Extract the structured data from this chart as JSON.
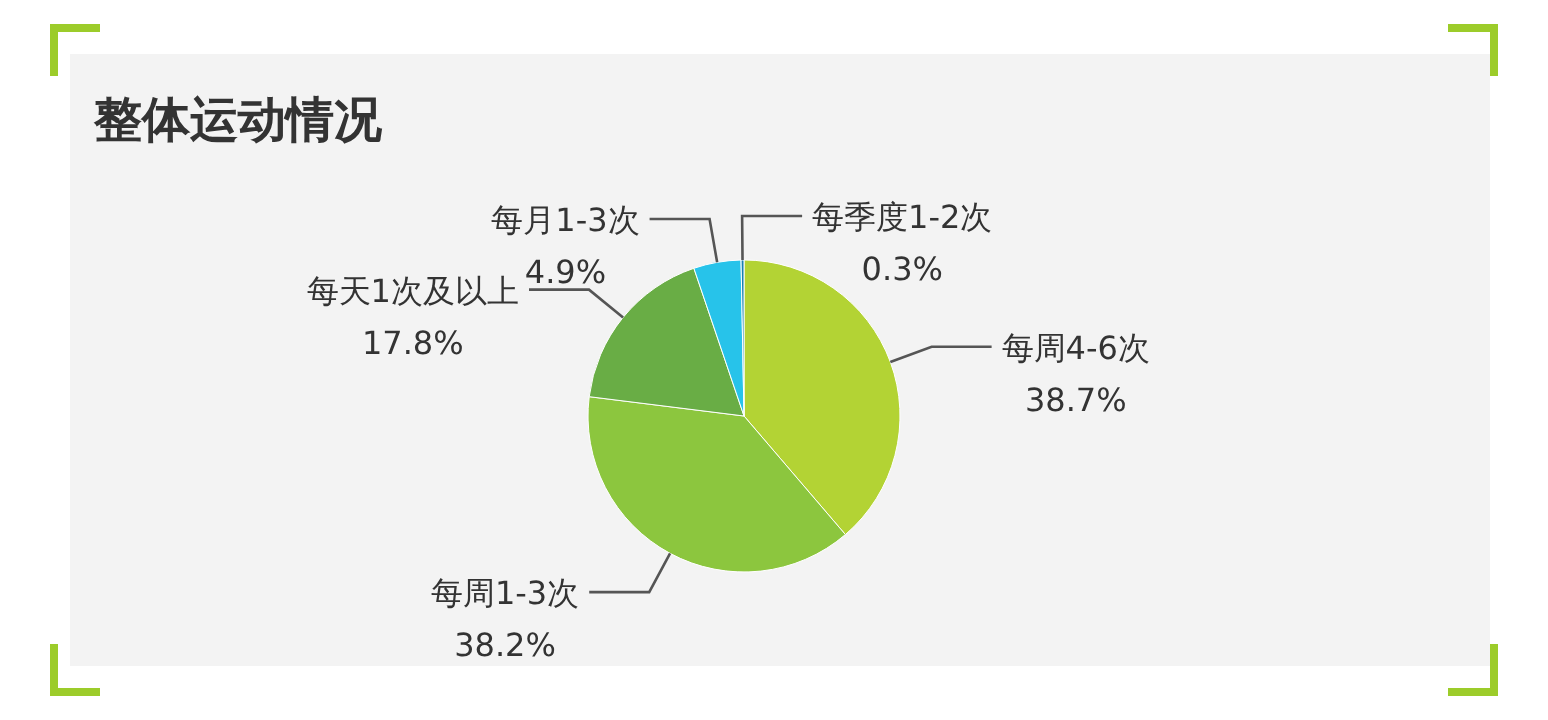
{
  "chart_data": {
    "type": "pie",
    "title": "整体运动情况",
    "categories": [
      "每周4-6次",
      "每周1-3次",
      "每天1次及以上",
      "每月1-3次",
      "每季度1-2次"
    ],
    "values": [
      38.7,
      38.2,
      17.8,
      4.9,
      0.3
    ],
    "value_labels": [
      "38.7%",
      "38.2%",
      "17.8%",
      "4.9%",
      "0.3%"
    ],
    "colors": [
      "#b3d334",
      "#8cc63e",
      "#69ad45",
      "#27c3ea",
      "#1a7fb0"
    ]
  }
}
